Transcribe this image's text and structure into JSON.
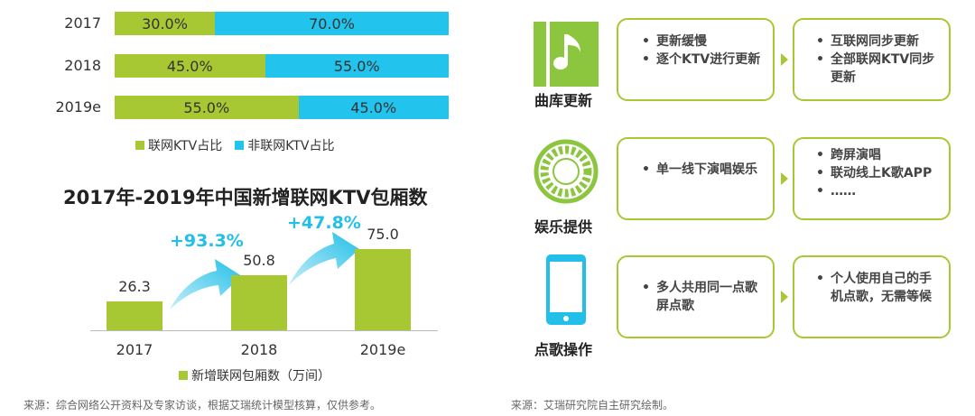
{
  "chart_data": [
    {
      "type": "bar",
      "orientation": "horizontal",
      "stacked": true,
      "categories": [
        "2017",
        "2018",
        "2019e"
      ],
      "series": [
        {
          "name": "联网KTV占比",
          "values": [
            30.0,
            45.0,
            55.0
          ],
          "labels": [
            "30.0%",
            "45.0%",
            "55.0%"
          ],
          "color": "#a7c832"
        },
        {
          "name": "非联网KTV占比",
          "values": [
            70.0,
            55.0,
            45.0
          ],
          "labels": [
            "70.0%",
            "55.0%",
            "45.0%"
          ],
          "color": "#22c3ec"
        }
      ],
      "xlim": [
        0,
        100
      ],
      "legend": "bottom"
    },
    {
      "type": "bar",
      "title": "2017年-2019年中国新增联网KTV包厢数",
      "categories": [
        "2017",
        "2018",
        "2019e"
      ],
      "series": [
        {
          "name": "新增联网包厢数（万间）",
          "values": [
            26.3,
            50.8,
            75.0
          ],
          "labels": [
            "26.3",
            "50.8",
            "75.0"
          ],
          "color": "#a7c832"
        }
      ],
      "annotations": [
        "+93.3%",
        "+47.8%"
      ],
      "ylim": [
        0,
        80
      ],
      "legend": "bottom"
    }
  ],
  "sources": {
    "left": "来源：综合网络公开资料及专家访谈，根据艾瑞统计模型核算，仅供参考。",
    "right": "来源：艾瑞研究院自主研究绘制。"
  },
  "comparison": {
    "rows": [
      {
        "label": "曲库更新",
        "icon": "music-note-icon",
        "before": [
          "更新缓慢",
          "逐个KTV进行更新"
        ],
        "after": [
          "互联网同步更新",
          "全部联网KTV同步更新"
        ]
      },
      {
        "label": "娱乐提供",
        "icon": "ring-icon",
        "before": [
          "单一线下演唱娱乐"
        ],
        "after": [
          "跨屏演唱",
          "联动线上K歌APP",
          "……"
        ]
      },
      {
        "label": "点歌操作",
        "icon": "phone-icon",
        "before": [
          "多人共用同一点歌屏点歌"
        ],
        "after": [
          "个人使用自己的手机点歌，无需等候"
        ]
      }
    ],
    "bullet": "•",
    "accent": "#a7c832",
    "icon_color": "#8cc63f"
  }
}
